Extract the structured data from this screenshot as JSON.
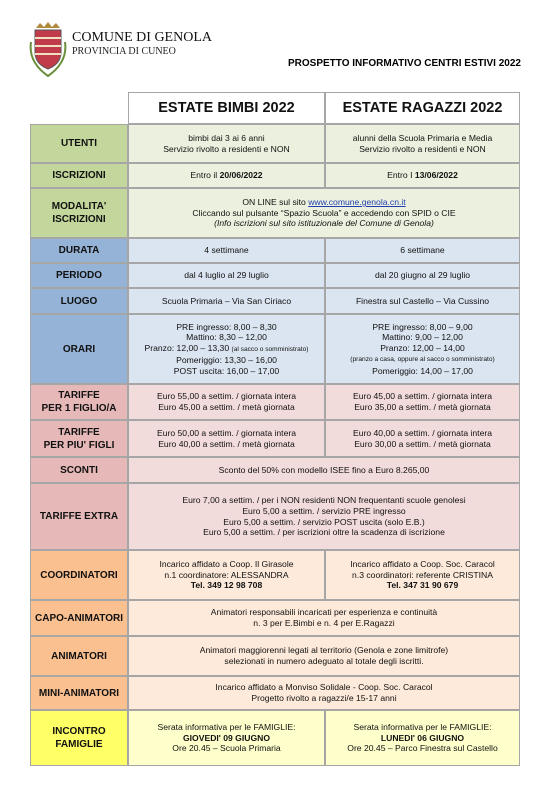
{
  "header": {
    "municipality": "COMUNE DI GENOLA",
    "province": "PROVINCIA DI CUNEO",
    "document_title": "PROSPETTO INFORMATIVO CENTRI ESTIVI 2022"
  },
  "table": {
    "columns": [
      "ESTATE BIMBI 2022",
      "ESTATE RAGAZZI 2022"
    ],
    "rows": [
      {
        "label": [
          "UTENTI"
        ],
        "label_color": "#c3d69b",
        "cell_color": "#ebf1de",
        "cells": [
          [
            "bimbi dai 3 ai 6 anni",
            "Servizio rivolto a residenti e NON"
          ],
          [
            "alunni della Scuola Primaria e Media",
            "Servizio rivolto a residenti e NON"
          ]
        ]
      },
      {
        "label": [
          "ISCRIZIONI"
        ],
        "label_color": "#c3d69b",
        "cell_color": "#ebf1de",
        "cells": [
          [
            [
              "Entro il ",
              {
                "text": "20/06/2022",
                "bold": true
              }
            ]
          ],
          [
            [
              "Entro I ",
              {
                "text": "13/06/2022",
                "bold": true
              }
            ]
          ]
        ]
      },
      {
        "label": [
          "MODALITA'",
          "ISCRIZIONI"
        ],
        "label_color": "#c3d69b",
        "cell_color": "#ebf1de",
        "cells": [
          [
            [
              "ON LINE sul sito ",
              {
                "text": "www.comune.genola.cn.it",
                "underline": true
              }
            ],
            "Cliccando sul pulsante “Spazio Scuola” e accedendo con SPID o CIE",
            {
              "text": "(Info iscrizioni sul sito istituzionale del Comune di Genola)",
              "italic": true
            }
          ]
        ]
      },
      {
        "label": [
          "DURATA"
        ],
        "label_color": "#95b3d7",
        "cell_color": "#dbe5f1",
        "cells": [
          [
            "4 settimane"
          ],
          [
            "6 settimane"
          ]
        ]
      },
      {
        "label": [
          "PERIODO"
        ],
        "label_color": "#95b3d7",
        "cell_color": "#dbe5f1",
        "cells": [
          [
            "dal 4 luglio al 29 luglio"
          ],
          [
            "dal 20 giugno al 29 luglio"
          ]
        ]
      },
      {
        "label": [
          "LUOGO"
        ],
        "label_color": "#95b3d7",
        "cell_color": "#dbe5f1",
        "cells": [
          [
            "Scuola Primaria – Via San Ciriaco"
          ],
          [
            "Finestra sul Castello – Via Cussino"
          ]
        ]
      },
      {
        "label": [
          "ORARI"
        ],
        "label_color": "#95b3d7",
        "cell_color": "#dbe5f1",
        "cells": [
          [
            "PRE ingresso: 8,00 – 8,30",
            "Mattino: 8,30 – 12,00",
            [
              "Pranzo: 12,00 – 13,30 ",
              {
                "text": "(al sacco o somministrato)",
                "small": true
              }
            ],
            "Pomeriggio: 13,30 – 16,00",
            "POST uscita: 16,00 – 17,00"
          ],
          [
            "PRE ingresso: 8,00 – 9,00",
            "Mattino: 9,00 – 12,00",
            "Pranzo: 12,00 – 14,00",
            {
              "text": "(pranzo a casa, oppure al sacco o somministrato)",
              "small": true
            },
            "Pomeriggio: 14,00 – 17,00"
          ]
        ]
      },
      {
        "label": [
          "TARIFFE",
          "PER 1 FIGLIO/A"
        ],
        "label_color": "#e6b9b8",
        "cell_color": "#f2dcdb",
        "cells": [
          [
            "Euro 55,00 a settim. / giornata intera",
            "Euro 45,00 a settim. / metà giornata"
          ],
          [
            "Euro 45,00 a settim.  / giornata intera",
            "Euro 35,00 a settim. / metà giornata"
          ]
        ]
      },
      {
        "label": [
          "TARIFFE",
          "PER PIU' FIGLI"
        ],
        "label_color": "#e6b9b8",
        "cell_color": "#f2dcdb",
        "cells": [
          [
            "Euro 50,00 a settim. / giornata intera",
            "Euro 40,00 a settim. / metà giornata"
          ],
          [
            "Euro 40,00 a settim. / giornata intera",
            "Euro 30,00 a settim. / metà giornata"
          ]
        ]
      },
      {
        "label": [
          "SCONTI"
        ],
        "label_color": "#e6b9b8",
        "cell_color": "#f2dcdb",
        "cells": [
          [
            "Sconto del 50% con modello ISEE fino a Euro 8.265,00"
          ]
        ]
      },
      {
        "label": [
          "TARIFFE EXTRA"
        ],
        "label_color": "#e6b9b8",
        "cell_color": "#f2dcdb",
        "cells": [
          [
            "Euro 7,00 a settim. / per i NON residenti NON frequentanti scuole genolesi",
            "Euro 5,00 a settim. / servizio PRE ingresso",
            "Euro 5,00 a settim. / servizio POST uscita (solo E.B.)",
            "Euro 5,00 a settim. / per iscrizioni oltre la scadenza di iscrizione"
          ]
        ]
      },
      {
        "label": [
          "COORDINATORI"
        ],
        "label_color": "#fac090",
        "cell_color": "#fdeada",
        "cells": [
          [
            "Incarico affidato a Coop. Il Girasole",
            "n.1 coordinatore: ALESSANDRA",
            {
              "text": "Tel. 349 12 98 708",
              "bold": true
            }
          ],
          [
            "Incarico affidato a Coop. Soc. Caracol",
            "n.3 coordinatori: referente CRISTINA",
            {
              "text": "Tel. 347 31 90 679",
              "bold": true
            }
          ]
        ]
      },
      {
        "label": [
          "CAPO-ANIMATORI"
        ],
        "label_color": "#fac090",
        "cell_color": "#fdeada",
        "cells": [
          [
            "Animatori responsabili incaricati per esperienza e continuità",
            "n. 3 per E.Bimbi e n. 4 per E.Ragazzi"
          ]
        ]
      },
      {
        "label": [
          "ANIMATORI"
        ],
        "label_color": "#fac090",
        "cell_color": "#fdeada",
        "cells": [
          [
            "Animatori maggiorenni legati al territorio (Genola e zone limitrofe)",
            "selezionati in numero adeguato al totale degli iscritti."
          ]
        ]
      },
      {
        "label": [
          "MINI-ANIMATORI"
        ],
        "label_color": "#fac090",
        "cell_color": "#fdeada",
        "cells": [
          [
            "Incarico affidato a Monviso Solidale - Coop. Soc. Caracol",
            "Progetto rivolto a ragazzi/e 15-17 anni"
          ]
        ]
      },
      {
        "label": [
          "INCONTRO",
          "FAMIGLIE"
        ],
        "label_color": "#ffff66",
        "cell_color": "#ffffcc",
        "cells": [
          [
            "Serata informativa per le FAMIGLIE:",
            {
              "text": "GIOVEDI' 09 GIUGNO",
              "bold": true
            },
            "Ore 20.45 – Scuola Primaria"
          ],
          [
            "Serata informativa per le FAMIGLIE:",
            {
              "text": "LUNEDI' 06 GIUGNO",
              "bold": true
            },
            "Ore 20.45 – Parco Finestra sul Castello"
          ]
        ]
      }
    ]
  }
}
